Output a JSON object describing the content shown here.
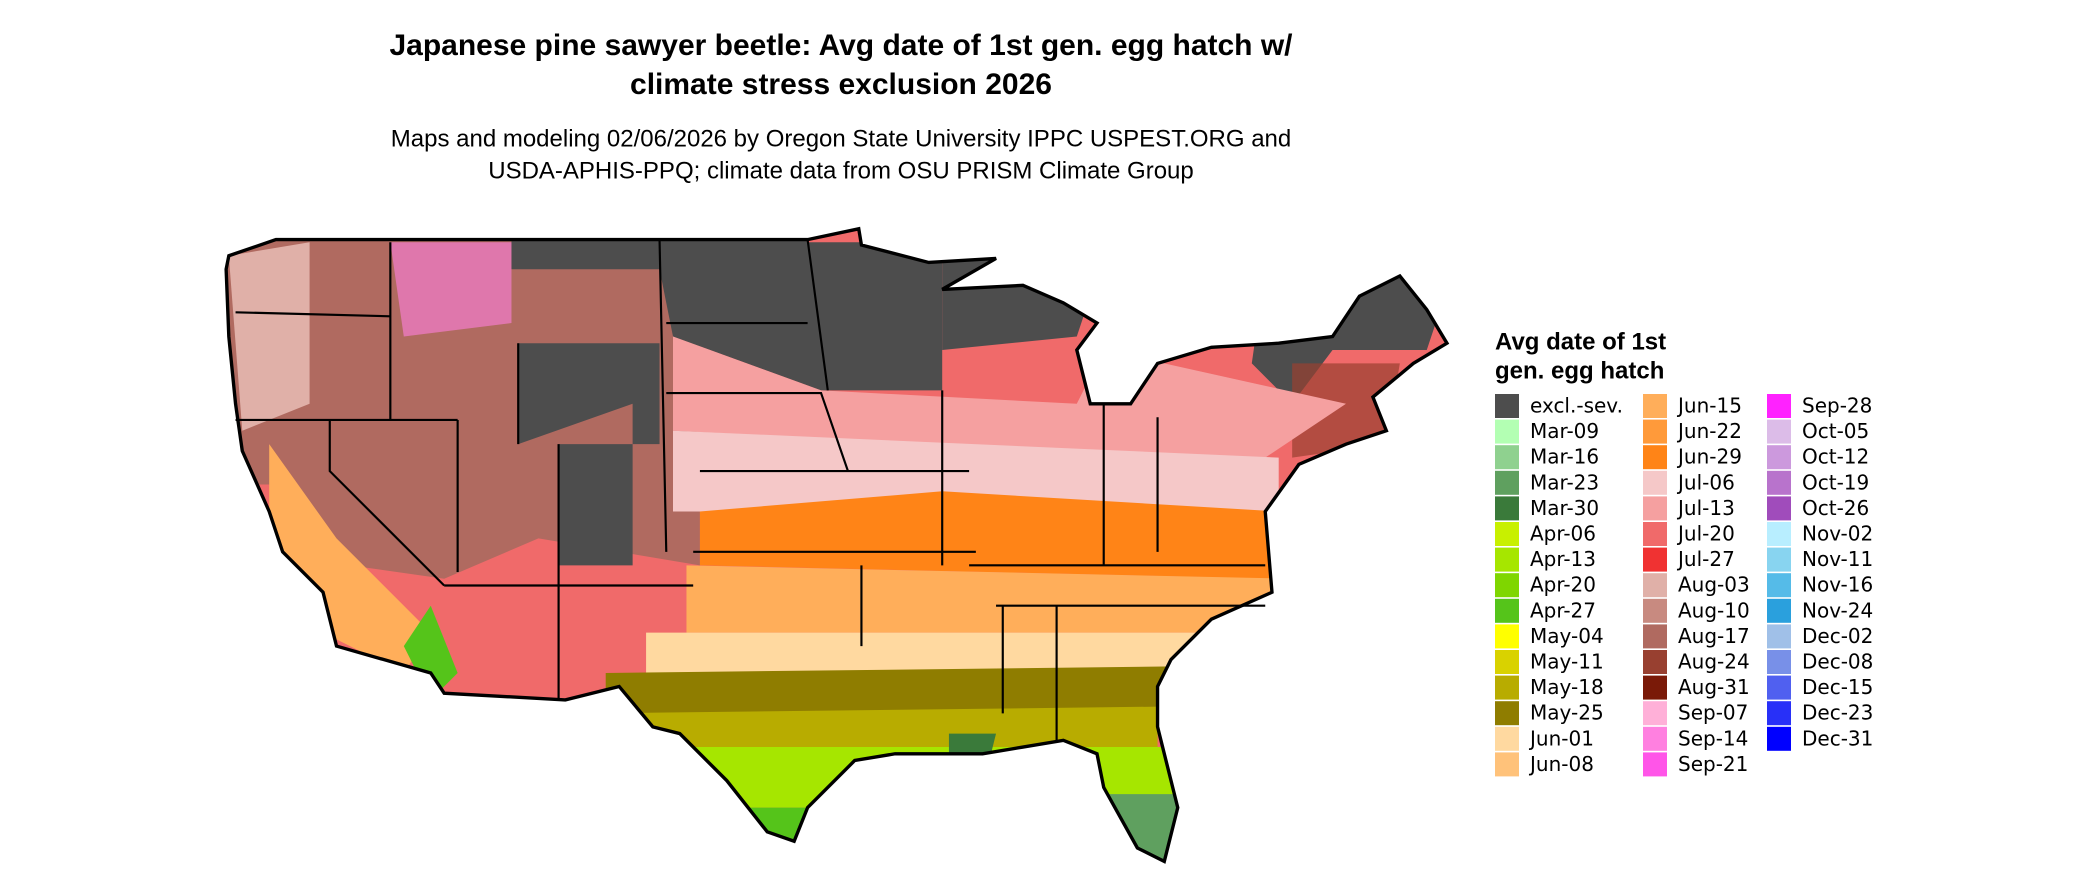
{
  "header": {
    "title": [
      "Japanese pine sawyer beetle: Avg date of 1st gen. egg hatch w/",
      "climate stress exclusion 2026"
    ],
    "subtitle": [
      "Maps and modeling 02/06/2026 by Oregon State University IPPC USPEST.ORG and",
      "USDA-APHIS-PPQ; climate data from OSU PRISM Climate Group"
    ]
  },
  "legend": {
    "title": [
      "Avg date of 1st",
      "gen. egg hatch"
    ],
    "items": [
      {
        "label": "excl.-sev.",
        "color": "#4d4d4d"
      },
      {
        "label": "Mar-09",
        "color": "#b3ffb3"
      },
      {
        "label": "Mar-16",
        "color": "#8fd18f"
      },
      {
        "label": "Mar-23",
        "color": "#5fa05f"
      },
      {
        "label": "Mar-30",
        "color": "#3a7a3a"
      },
      {
        "label": "Apr-06",
        "color": "#c8f000"
      },
      {
        "label": "Apr-13",
        "color": "#a6e600"
      },
      {
        "label": "Apr-20",
        "color": "#7fd600"
      },
      {
        "label": "Apr-27",
        "color": "#55c41a"
      },
      {
        "label": "May-04",
        "color": "#ffff00"
      },
      {
        "label": "May-11",
        "color": "#d9d200"
      },
      {
        "label": "May-18",
        "color": "#b8ac00"
      },
      {
        "label": "May-25",
        "color": "#8f7d00"
      },
      {
        "label": "Jun-01",
        "color": "#ffd9a0"
      },
      {
        "label": "Jun-08",
        "color": "#ffc27a"
      },
      {
        "label": "Jun-15",
        "color": "#ffae5a"
      },
      {
        "label": "Jun-22",
        "color": "#ff9a3a"
      },
      {
        "label": "Jun-29",
        "color": "#ff8417"
      },
      {
        "label": "Jul-06",
        "color": "#f5c8c8"
      },
      {
        "label": "Jul-13",
        "color": "#f5a0a0"
      },
      {
        "label": "Jul-20",
        "color": "#f06a6a"
      },
      {
        "label": "Jul-27",
        "color": "#f03232"
      },
      {
        "label": "Aug-03",
        "color": "#e0b0a8"
      },
      {
        "label": "Aug-10",
        "color": "#c88a80"
      },
      {
        "label": "Aug-17",
        "color": "#b06a60"
      },
      {
        "label": "Aug-24",
        "color": "#984030"
      },
      {
        "label": "Aug-31",
        "color": "#7a1a08"
      },
      {
        "label": "Sep-07",
        "color": "#ffb0d8"
      },
      {
        "label": "Sep-14",
        "color": "#ff80e0"
      },
      {
        "label": "Sep-21",
        "color": "#ff55e8"
      },
      {
        "label": "Sep-28",
        "color": "#ff22ff"
      },
      {
        "label": "Oct-05",
        "color": "#dcbce8"
      },
      {
        "label": "Oct-12",
        "color": "#cc99dd"
      },
      {
        "label": "Oct-19",
        "color": "#b873cc"
      },
      {
        "label": "Oct-26",
        "color": "#a04cbb"
      },
      {
        "label": "Nov-02",
        "color": "#b8eeff"
      },
      {
        "label": "Nov-11",
        "color": "#88d4f0"
      },
      {
        "label": "Nov-16",
        "color": "#55bbe8"
      },
      {
        "label": "Nov-24",
        "color": "#2aa0dd"
      },
      {
        "label": "Dec-02",
        "color": "#a0c0e8"
      },
      {
        "label": "Dec-08",
        "color": "#7890e8"
      },
      {
        "label": "Dec-15",
        "color": "#5060f0"
      },
      {
        "label": "Dec-23",
        "color": "#2830f8"
      },
      {
        "label": "Dec-31",
        "color": "#0000ff"
      }
    ]
  }
}
